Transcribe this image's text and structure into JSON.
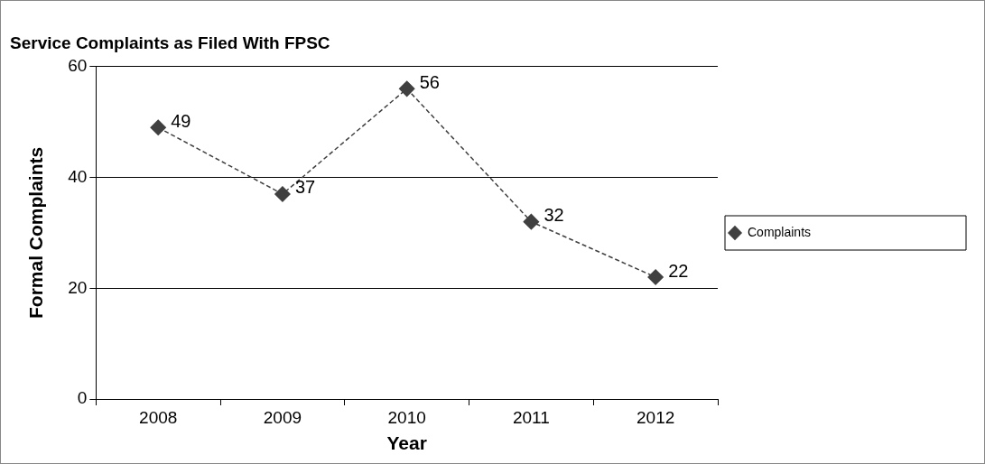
{
  "chart_data": {
    "type": "line",
    "title": "Service Complaints as Filed With FPSC",
    "xlabel": "Year",
    "ylabel": "Formal Complaints",
    "categories": [
      "2008",
      "2009",
      "2010",
      "2011",
      "2012"
    ],
    "series": [
      {
        "name": "Complaints",
        "color": "#404040",
        "values": [
          49,
          37,
          56,
          32,
          22
        ]
      }
    ],
    "ylim": [
      0,
      60
    ],
    "yticks": [
      0,
      20,
      40,
      60
    ],
    "grid": "y",
    "legend": "right",
    "marker": "diamond",
    "line_style": "dashed",
    "data_labels": true
  }
}
